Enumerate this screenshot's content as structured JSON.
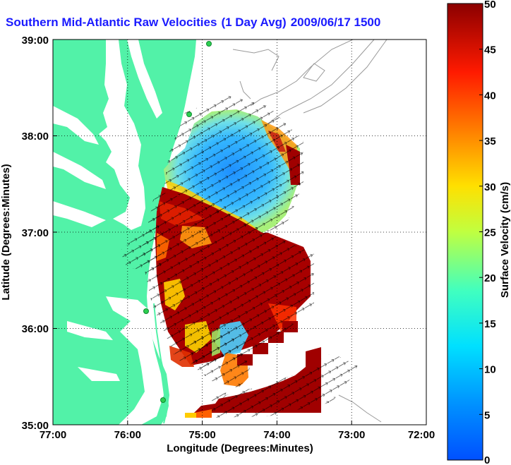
{
  "title": {
    "region": "Southern Mid-Atlantic Raw Velocities",
    "averaging": "(1 Day Avg)",
    "datetime": "2009/06/17 1500"
  },
  "map": {
    "xlabel": "Longitude (Degrees:Minutes)",
    "ylabel": "Latitude (Degrees:Minutes)",
    "lon_ticks": [
      "77:00",
      "76:00",
      "75:00",
      "74:00",
      "73:00",
      "72:00"
    ],
    "lat_ticks": [
      "39:00",
      "38:00",
      "37:00",
      "36:00",
      "35:00"
    ],
    "land_color": "#52f2a8",
    "coast_color": "#ffffff",
    "bathymetry_color": "#9a9a9a",
    "grid_style": "dotted"
  },
  "colorbar": {
    "label": "Surface Velocity (cm/s)",
    "ticks": [
      "0",
      "5",
      "10",
      "15",
      "20",
      "25",
      "30",
      "35",
      "40",
      "45",
      "50"
    ],
    "colormap": "jet"
  }
}
